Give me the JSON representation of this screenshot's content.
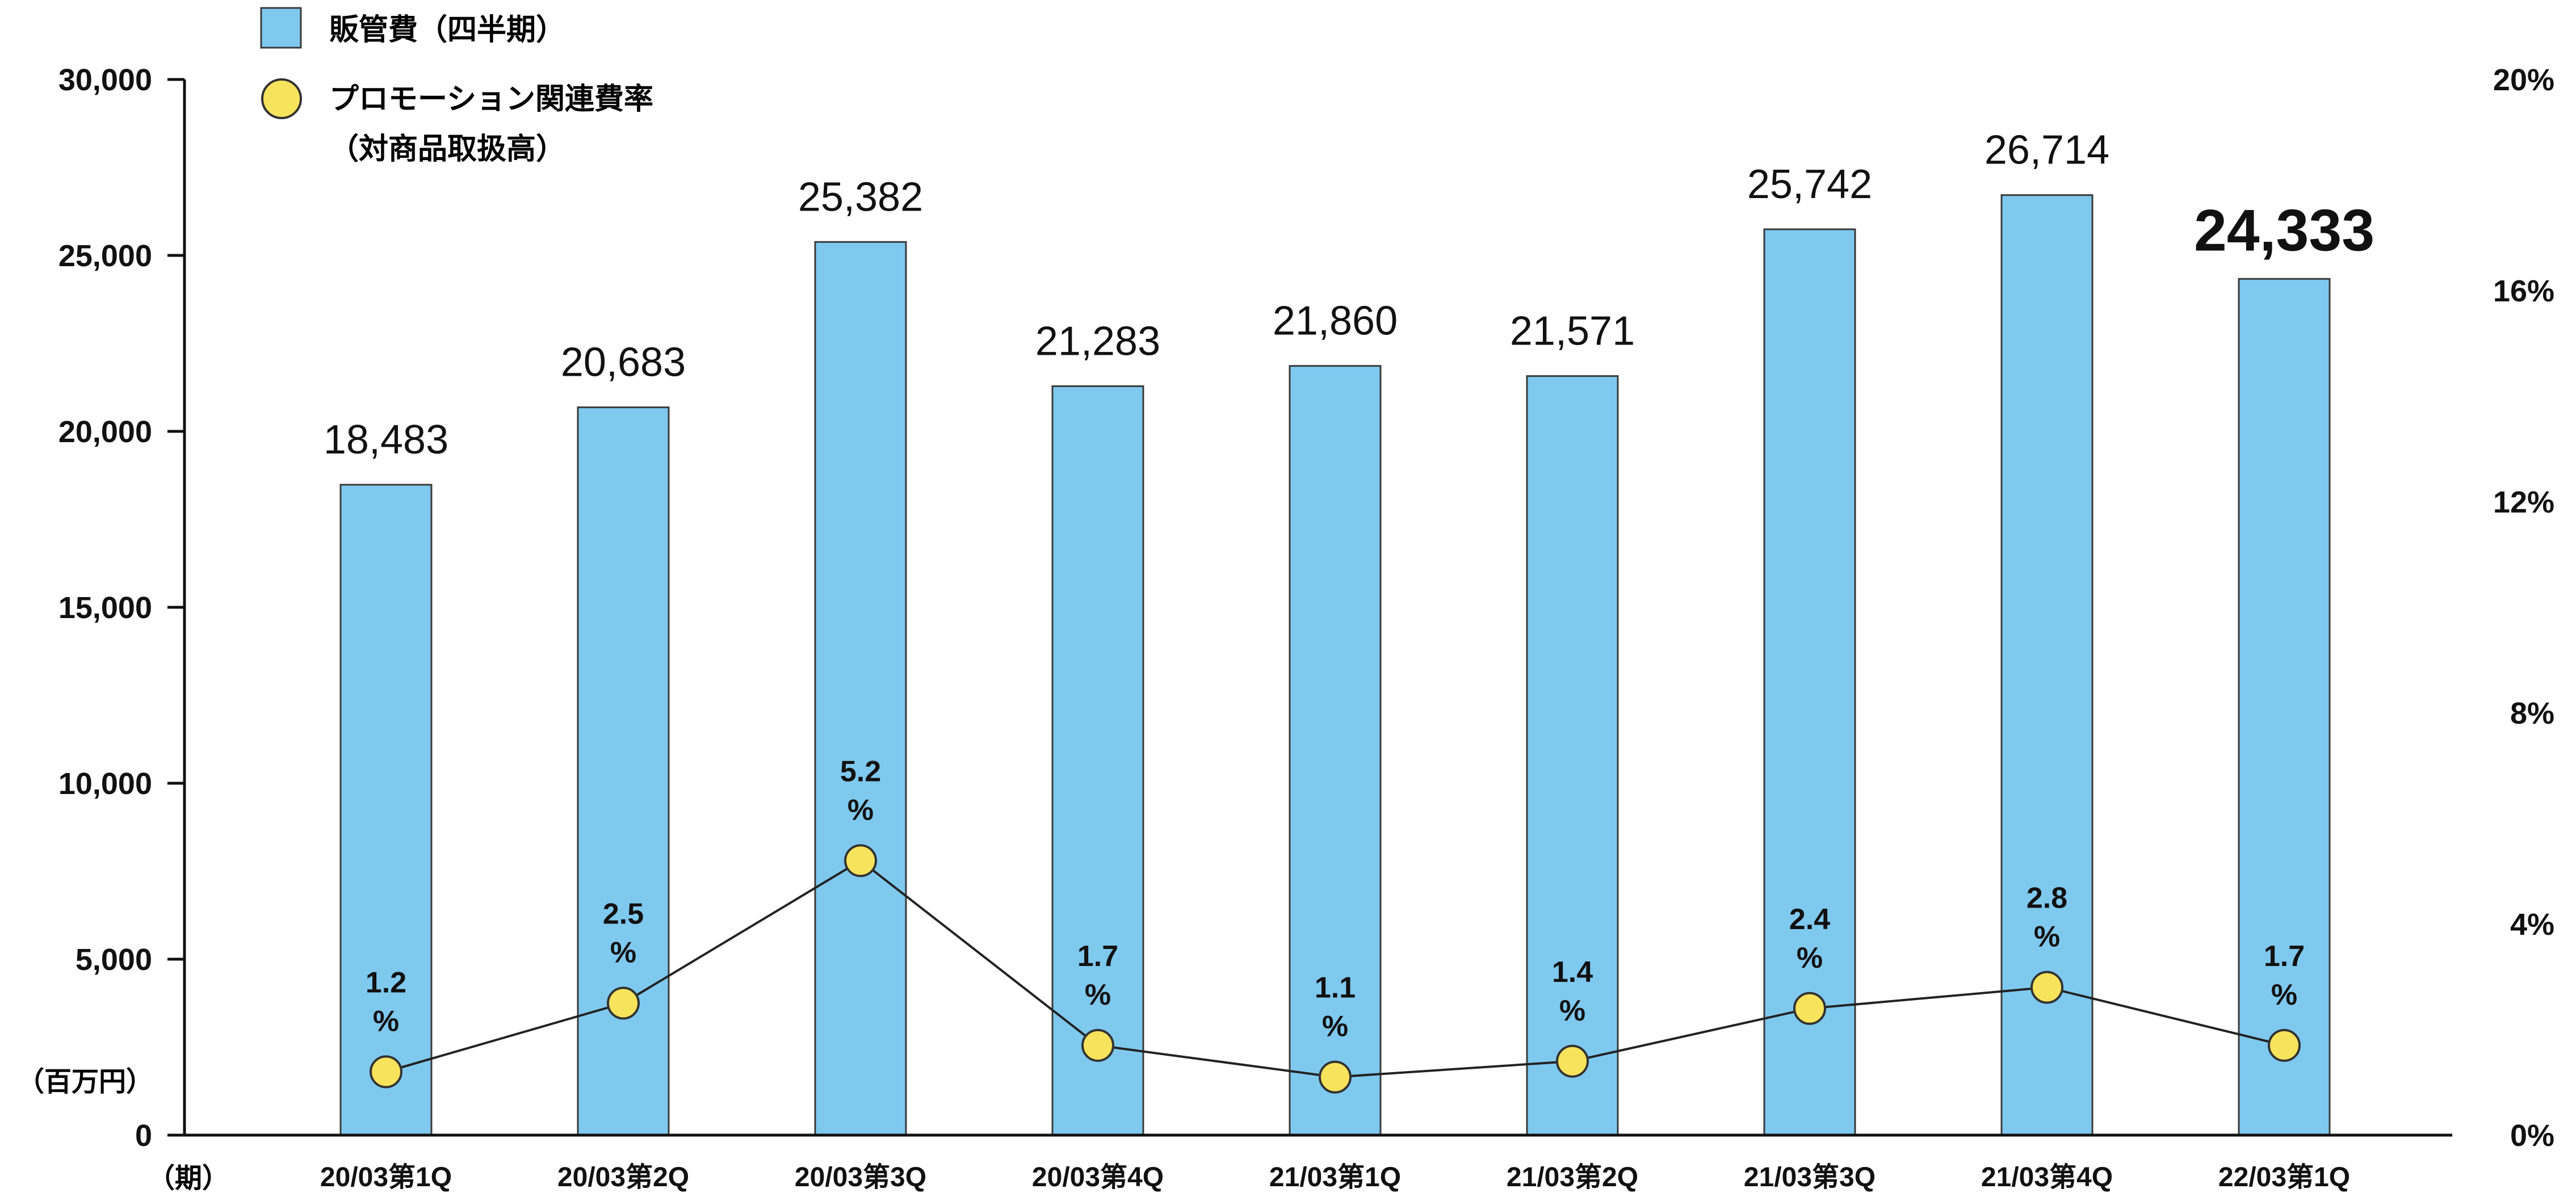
{
  "colors": {
    "bar": "#7fc9ef",
    "bar_stroke": "#3a3a3a",
    "marker": "#f8e45c",
    "marker_stroke": "#333333",
    "line": "#222222",
    "axis": "#111111",
    "text": "#111111"
  },
  "legend": {
    "bar_label": "販管費（四半期）",
    "line_label_1": "プロモーション関連費率",
    "line_label_2": "（対商品取扱高）"
  },
  "axes": {
    "left_unit": "（百万円）",
    "x_unit": "（期）",
    "left_ticks": [
      "0",
      "5,000",
      "10,000",
      "15,000",
      "20,000",
      "25,000",
      "30,000"
    ],
    "right_ticks": [
      "0%",
      "4%",
      "8%",
      "12%",
      "16%",
      "20%"
    ]
  },
  "chart_data": {
    "type": "bar",
    "categories": [
      "20/03第1Q",
      "20/03第2Q",
      "20/03第3Q",
      "20/03第4Q",
      "21/03第1Q",
      "21/03第2Q",
      "21/03第3Q",
      "21/03第4Q",
      "22/03第1Q"
    ],
    "series": [
      {
        "name": "販管費（四半期）",
        "type": "bar",
        "axis": "left",
        "values": [
          18483,
          20683,
          25382,
          21283,
          21860,
          21571,
          25742,
          26714,
          24333
        ],
        "labels": [
          "18,483",
          "20,683",
          "25,382",
          "21,283",
          "21,860",
          "21,571",
          "25,742",
          "26,714",
          "24,333"
        ]
      },
      {
        "name": "プロモーション関連費率（対商品取扱高）",
        "type": "line",
        "axis": "right",
        "values": [
          1.2,
          2.5,
          5.2,
          1.7,
          1.1,
          1.4,
          2.4,
          2.8,
          1.7
        ],
        "labels": [
          "1.2",
          "2.5",
          "5.2",
          "1.7",
          "1.1",
          "1.4",
          "2.4",
          "2.8",
          "1.7"
        ],
        "unit_label": "%"
      }
    ],
    "ylim_left": [
      0,
      30000
    ],
    "ylim_right": [
      0,
      20
    ],
    "grid": false,
    "legend_position": "top-left"
  }
}
